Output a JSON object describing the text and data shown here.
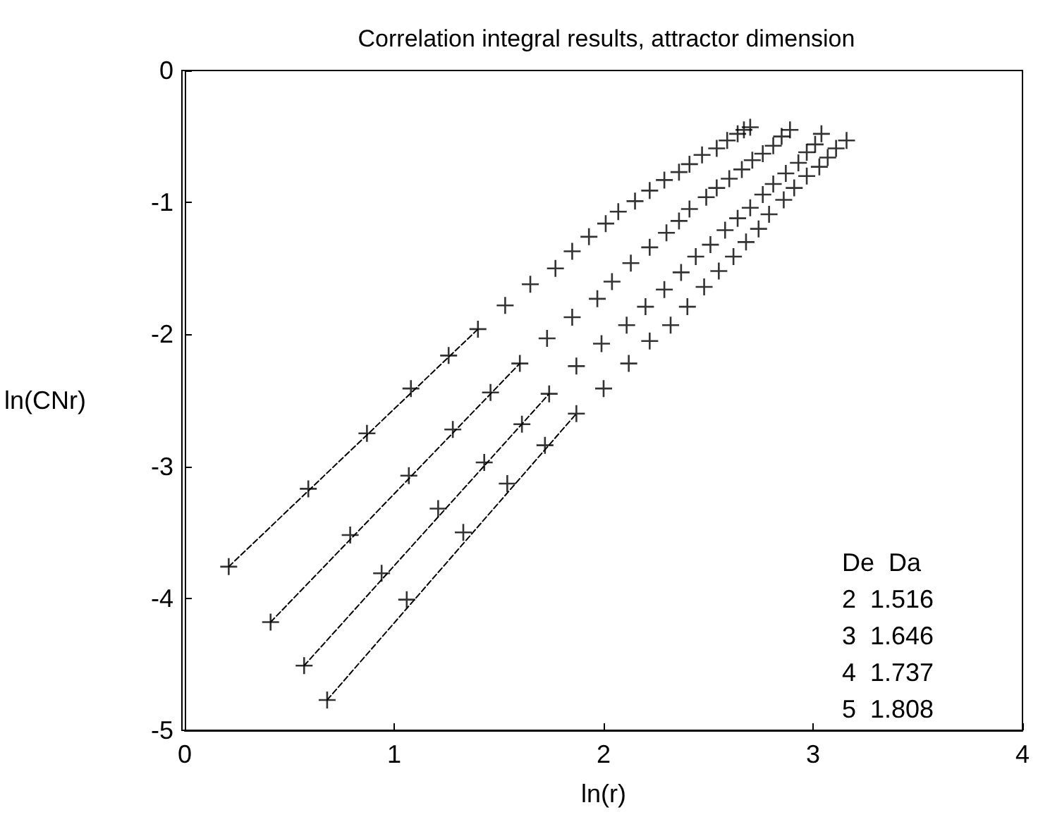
{
  "chart_data": {
    "type": "scatter",
    "title": "Correlation integral results, attractor dimension",
    "xlabel": "ln(r)",
    "ylabel": "ln(CNr)",
    "xlim": [
      0,
      4
    ],
    "xticks": [
      0,
      1,
      2,
      3,
      4
    ],
    "ylim": [
      -5,
      0
    ],
    "yticks": [
      -5,
      -4,
      -3,
      -2,
      -1,
      0
    ],
    "grid": false,
    "marker": "cross",
    "series": [
      {
        "color": "#000000",
        "x": [
          0.21,
          0.59,
          0.87,
          1.08,
          1.26,
          1.4,
          1.53,
          1.65,
          1.77,
          1.85,
          1.93,
          2.01,
          2.07,
          2.15,
          2.22,
          2.29,
          2.36,
          2.41,
          2.47,
          2.54,
          2.59,
          2.64,
          2.67,
          2.7
        ],
        "values": [
          -3.76,
          -3.17,
          -2.75,
          -2.41,
          -2.16,
          -1.96,
          -1.78,
          -1.62,
          -1.5,
          -1.37,
          -1.26,
          -1.16,
          -1.07,
          -0.99,
          -0.91,
          -0.83,
          -0.77,
          -0.71,
          -0.64,
          -0.59,
          -0.53,
          -0.48,
          -0.45,
          -0.43
        ]
      },
      {
        "color": "#000000",
        "x": [
          0.41,
          0.79,
          1.07,
          1.28,
          1.46,
          1.6,
          1.73,
          1.85,
          1.97,
          2.04,
          2.13,
          2.22,
          2.3,
          2.36,
          2.41,
          2.49,
          2.54,
          2.6,
          2.66,
          2.71,
          2.76,
          2.81,
          2.85,
          2.89
        ],
        "values": [
          -4.18,
          -3.52,
          -3.07,
          -2.72,
          -2.44,
          -2.22,
          -2.03,
          -1.87,
          -1.73,
          -1.6,
          -1.46,
          -1.34,
          -1.23,
          -1.14,
          -1.05,
          -0.96,
          -0.89,
          -0.82,
          -0.75,
          -0.68,
          -0.63,
          -0.57,
          -0.5,
          -0.45
        ]
      },
      {
        "color": "#000000",
        "x": [
          0.57,
          0.94,
          1.21,
          1.43,
          1.61,
          1.74,
          1.87,
          1.99,
          2.11,
          2.2,
          2.29,
          2.37,
          2.44,
          2.51,
          2.58,
          2.64,
          2.7,
          2.76,
          2.81,
          2.87,
          2.93,
          2.97,
          3.01,
          3.04
        ],
        "values": [
          -4.51,
          -3.81,
          -3.32,
          -2.97,
          -2.68,
          -2.45,
          -2.24,
          -2.07,
          -1.93,
          -1.79,
          -1.66,
          -1.53,
          -1.41,
          -1.32,
          -1.21,
          -1.12,
          -1.04,
          -0.94,
          -0.86,
          -0.78,
          -0.7,
          -0.62,
          -0.56,
          -0.48
        ]
      },
      {
        "color": "#000000",
        "x": [
          0.68,
          1.06,
          1.33,
          1.54,
          1.72,
          1.87,
          2.0,
          2.12,
          2.22,
          2.32,
          2.4,
          2.48,
          2.55,
          2.62,
          2.68,
          2.74,
          2.79,
          2.86,
          2.91,
          2.97,
          3.03,
          3.07,
          3.11,
          3.16
        ],
        "values": [
          -4.77,
          -4.01,
          -3.5,
          -3.13,
          -2.84,
          -2.6,
          -2.41,
          -2.22,
          -2.05,
          -1.93,
          -1.79,
          -1.64,
          -1.52,
          -1.41,
          -1.3,
          -1.2,
          -1.09,
          -0.98,
          -0.89,
          -0.8,
          -0.73,
          -0.66,
          -0.59,
          -0.53
        ]
      },
      {
        "type": "line",
        "color": "#000000",
        "marker": "none",
        "line_style": "dashed",
        "x": [
          0.21,
          1.4
        ],
        "values": [
          -3.76,
          -1.96
        ]
      },
      {
        "type": "line",
        "color": "#000000",
        "marker": "none",
        "line_style": "dashed",
        "x": [
          0.41,
          1.6
        ],
        "values": [
          -4.18,
          -2.22
        ]
      },
      {
        "type": "line",
        "color": "#000000",
        "marker": "none",
        "line_style": "dashed",
        "x": [
          0.57,
          1.74
        ],
        "values": [
          -4.51,
          -2.45
        ]
      },
      {
        "type": "line",
        "color": "#000000",
        "marker": "none",
        "line_style": "dashed",
        "x": [
          0.68,
          1.87
        ],
        "values": [
          -4.77,
          -2.6
        ]
      }
    ],
    "annotations": [
      "De  Da",
      "2  1.516",
      "3  1.646",
      "4  1.737",
      "5  1.808"
    ]
  }
}
